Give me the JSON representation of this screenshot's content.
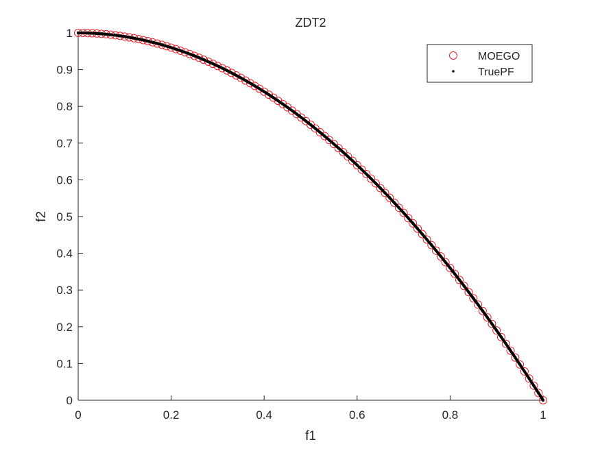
{
  "chart_data": {
    "type": "scatter",
    "title": "ZDT2",
    "xlabel": "f1",
    "ylabel": "f2",
    "xlim": [
      0,
      1
    ],
    "ylim": [
      0,
      1
    ],
    "xticks": [
      "0",
      "0.2",
      "0.4",
      "0.6",
      "0.8",
      "1"
    ],
    "xtick_values": [
      0,
      0.2,
      0.4,
      0.6,
      0.8,
      1
    ],
    "yticks": [
      "0",
      "0.1",
      "0.2",
      "0.3",
      "0.4",
      "0.5",
      "0.6",
      "0.7",
      "0.8",
      "0.9",
      "1"
    ],
    "ytick_values": [
      0,
      0.1,
      0.2,
      0.3,
      0.4,
      0.5,
      0.6,
      0.7,
      0.8,
      0.9,
      1
    ],
    "grid": false,
    "legend_placement": "top-right",
    "x": [
      0,
      0.01,
      0.02,
      0.03,
      0.04,
      0.05,
      0.06,
      0.07,
      0.08,
      0.09,
      0.1,
      0.11,
      0.12,
      0.13,
      0.14,
      0.15,
      0.16,
      0.17,
      0.18,
      0.19,
      0.2,
      0.21,
      0.22,
      0.23,
      0.24,
      0.25,
      0.26,
      0.27,
      0.28,
      0.29,
      0.3,
      0.31,
      0.32,
      0.33,
      0.34,
      0.35,
      0.36,
      0.37,
      0.38,
      0.39,
      0.4,
      0.41,
      0.42,
      0.43,
      0.44,
      0.45,
      0.46,
      0.47,
      0.48,
      0.49,
      0.5,
      0.51,
      0.52,
      0.53,
      0.54,
      0.55,
      0.56,
      0.57,
      0.58,
      0.59,
      0.6,
      0.61,
      0.62,
      0.63,
      0.64,
      0.65,
      0.66,
      0.67,
      0.68,
      0.69,
      0.7,
      0.71,
      0.72,
      0.73,
      0.74,
      0.75,
      0.76,
      0.77,
      0.78,
      0.79,
      0.8,
      0.81,
      0.82,
      0.83,
      0.84,
      0.85,
      0.86,
      0.87,
      0.88,
      0.89,
      0.9,
      0.91,
      0.92,
      0.93,
      0.94,
      0.95,
      0.96,
      0.97,
      0.98,
      0.99,
      1
    ],
    "y": [
      1,
      0.9999,
      0.9996,
      0.9991,
      0.9984,
      0.9975,
      0.9964,
      0.9951,
      0.9936,
      0.9919,
      0.99,
      0.9879,
      0.9856,
      0.9831,
      0.9804,
      0.9775,
      0.9744,
      0.9711,
      0.9676,
      0.9639,
      0.96,
      0.9559,
      0.9516,
      0.9471,
      0.9424,
      0.9375,
      0.9324,
      0.9271,
      0.9216,
      0.9159,
      0.91,
      0.9039,
      0.8976,
      0.8911,
      0.8844,
      0.8775,
      0.8704,
      0.8631,
      0.8556,
      0.8479,
      0.84,
      0.8319,
      0.8236,
      0.8151,
      0.8064,
      0.7975,
      0.7884,
      0.7791,
      0.7696,
      0.7599,
      0.75,
      0.7399,
      0.7296,
      0.7191,
      0.7084,
      0.6975,
      0.6864,
      0.6751,
      0.6636,
      0.6519,
      0.64,
      0.6279,
      0.6156,
      0.6031,
      0.5904,
      0.5775,
      0.5644,
      0.5511,
      0.5376,
      0.5239,
      0.51,
      0.4959,
      0.4816,
      0.4671,
      0.4524,
      0.4375,
      0.4224,
      0.4071,
      0.3916,
      0.3759,
      0.36,
      0.3439,
      0.3276,
      0.3111,
      0.2944,
      0.2775,
      0.2604,
      0.2431,
      0.2256,
      0.2079,
      0.19,
      0.1719,
      0.1536,
      0.1351,
      0.1164,
      0.0975,
      0.0784,
      0.0591,
      0.0396,
      0.0199,
      0
    ],
    "series": [
      {
        "name": "MOEGO",
        "marker": "circle",
        "color": "#e8202a"
      },
      {
        "name": "TruePF",
        "marker": "dot",
        "color": "#000000"
      }
    ]
  }
}
